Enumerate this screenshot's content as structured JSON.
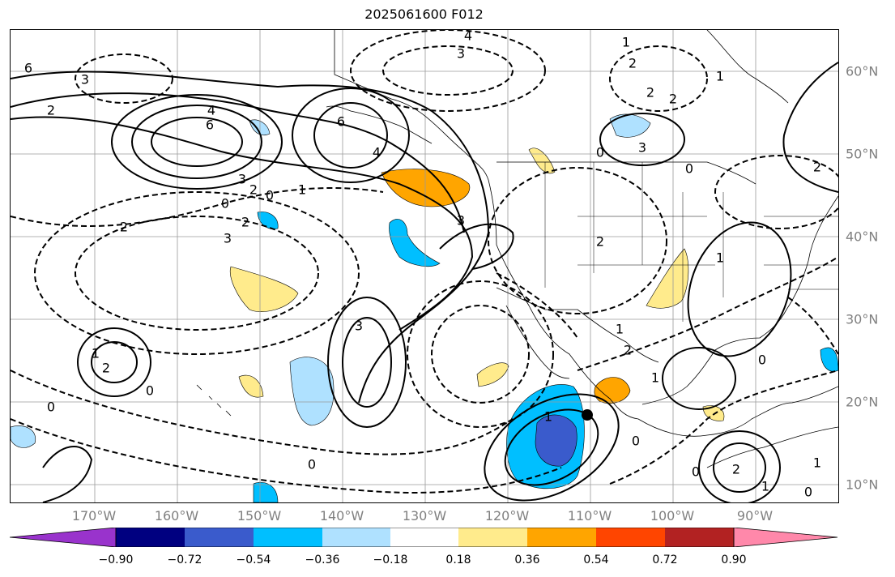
{
  "title": "2025061600 F012",
  "longitude_labels": [
    "170°W",
    "160°W",
    "150°W",
    "140°W",
    "130°W",
    "120°W",
    "110°W",
    "100°W",
    "90°W"
  ],
  "latitude_labels": [
    "60°N",
    "50°N",
    "40°N",
    "30°N",
    "20°N",
    "10°N"
  ],
  "map": {
    "lon_range": [
      -180,
      -80
    ],
    "lat_range": [
      8,
      65
    ],
    "gridlines": true
  },
  "contour_labels": [
    "4",
    "3",
    "1",
    "2",
    "2",
    "2",
    "1",
    "6",
    "3",
    "2",
    "4",
    "6",
    "6",
    "4",
    "3",
    "2",
    "0",
    "0",
    "1",
    "2",
    "3",
    "3",
    "3",
    "2",
    "1",
    "2",
    "0",
    "2",
    "0",
    "0",
    "3",
    "0",
    "0",
    "1",
    "1",
    "1",
    "2",
    "0",
    "0",
    "0",
    "1",
    "2",
    "1",
    "1",
    "2",
    "0"
  ],
  "colorbar": {
    "ticks": [
      "−0.90",
      "−0.72",
      "−0.54",
      "−0.36",
      "−0.18",
      "0.18",
      "0.36",
      "0.54",
      "0.72",
      "0.90"
    ],
    "colors": [
      "#9933cc",
      "#000080",
      "#3a5bcc",
      "#00bfff",
      "#afe1ff",
      "#ffffff",
      "#ffeb8c",
      "#ffa500",
      "#ff4500",
      "#b22222",
      "#ff88aa"
    ]
  }
}
